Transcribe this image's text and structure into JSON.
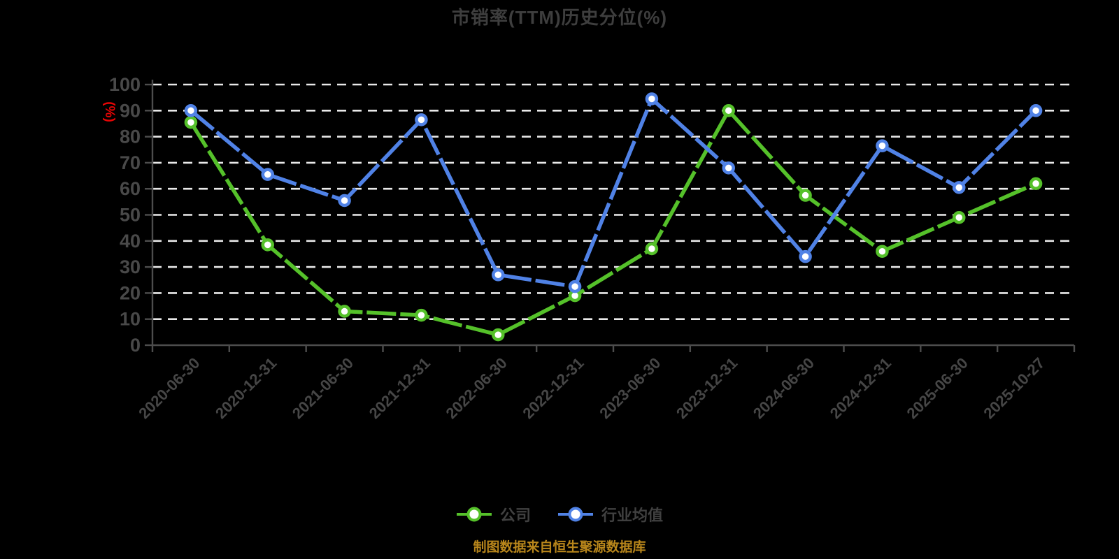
{
  "page": {
    "title": "市销率(TTM)历史分位(%)",
    "y_axis_unit": "(%)",
    "footer_note": "制图数据来自恒生聚源数据库",
    "background_color": "#000000",
    "title_color": "#3E3E3E",
    "unit_label_color": "#E60505",
    "footer_color": "#B8861B",
    "gridline_color": "#E9E9E9",
    "axis_color": "#4D4D4D"
  },
  "chart_data": {
    "type": "line",
    "title": "市销率(TTM)历史分位(%)",
    "categories": [
      "2020-06-30",
      "2020-12-31",
      "2021-06-30",
      "2021-12-31",
      "2022-06-30",
      "2022-12-31",
      "2023-06-30",
      "2023-12-31",
      "2024-06-30",
      "2024-12-31",
      "2025-06-30",
      "2025-10-27"
    ],
    "series": [
      {
        "name": "公司",
        "color": "#55C12A",
        "marker": "circle",
        "values": [
          85.5,
          38.5,
          13,
          11.5,
          4,
          19,
          37,
          90,
          57.5,
          36,
          49,
          62
        ]
      },
      {
        "name": "行业均值",
        "color": "#5082E6",
        "marker": "circle",
        "values": [
          90,
          65.5,
          55.5,
          86.5,
          27,
          22.5,
          94.5,
          68,
          34,
          76.5,
          60.5,
          90
        ]
      }
    ],
    "xlabel": "",
    "ylabel": "(%)",
    "ylim": [
      0,
      100
    ],
    "ytick_step": 10,
    "grid": true,
    "grid_style": "dashed",
    "x_tick_label_rotation": 45,
    "legend_position": "bottom"
  }
}
